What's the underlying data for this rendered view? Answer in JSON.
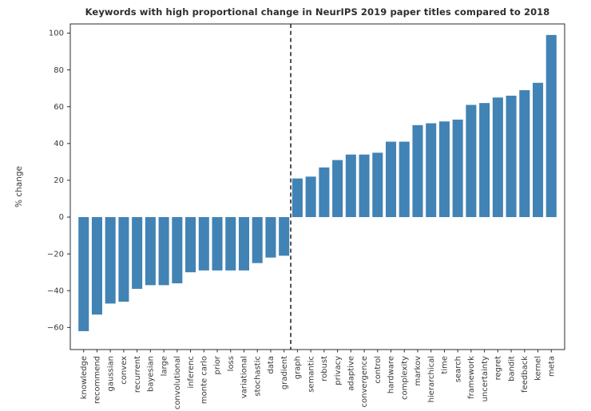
{
  "window": {
    "background": "#ffffff"
  },
  "chart_data": {
    "type": "bar",
    "title": "Keywords with high proportional change in NeurIPS 2019 paper titles compared to 2018",
    "xlabel": "",
    "ylabel": "% change",
    "categories": [
      "knowledge",
      "recommend",
      "gaussian",
      "convex",
      "recurrent",
      "bayesian",
      "large",
      "convolutional",
      "inferenc",
      "monte carlo",
      "prior",
      "loss",
      "variational",
      "stochastic",
      "data",
      "gradient",
      "graph",
      "semantic",
      "robust",
      "privacy",
      "adaptive",
      "convergence",
      "control",
      "hardware",
      "complexity",
      "markov",
      "hierarchical",
      "time",
      "search",
      "framework",
      "uncertainty",
      "regret",
      "bandit",
      "feedback",
      "kernel",
      "meta"
    ],
    "values": [
      -62,
      -53,
      -47,
      -46,
      -39,
      -37,
      -37,
      -36,
      -30,
      -29,
      -29,
      -29,
      -29,
      -25,
      -22,
      -21,
      21,
      22,
      27,
      31,
      34,
      34,
      35,
      41,
      41,
      50,
      51,
      52,
      53,
      61,
      62,
      65,
      66,
      69,
      73,
      99
    ],
    "yticks": [
      100,
      80,
      60,
      40,
      20,
      0,
      -20,
      -40,
      -60
    ],
    "ylim": [
      -72,
      105
    ],
    "grid": false,
    "legend": null,
    "bar_color": "#4183b4",
    "spine_color": "#2b2b2b",
    "tick_label_color": "#3a3a3a",
    "divider": {
      "style": "dashed",
      "color": "#1a1a1a",
      "between": [
        "gradient",
        "graph"
      ]
    }
  }
}
